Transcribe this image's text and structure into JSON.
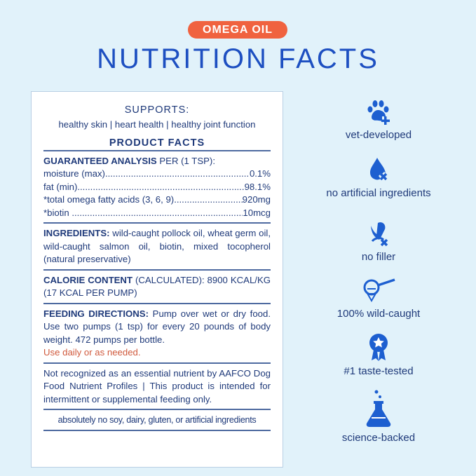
{
  "badge": "OMEGA OIL",
  "title": "NUTRITION FACTS",
  "panel": {
    "supports_title": "SUPPORTS:",
    "supports": "healthy skin | heart health | healthy joint function",
    "product_facts": "PRODUCT FACTS",
    "ga_title": "GUARANTEED ANALYSIS",
    "ga_per": " PER (1 TSP):",
    "analysis": [
      {
        "label": "moisture (max)",
        "value": "0.1%"
      },
      {
        "label": "fat (min)",
        "value": "98.1%"
      },
      {
        "label": "*total omega fatty acids (3, 6, 9)",
        "value": "920mg"
      },
      {
        "label": "*biotin ",
        "value": "10mcg"
      }
    ],
    "ingredients_title": "INGREDIENTS:",
    "ingredients": " wild-caught pollock oil, wheat germ oil, wild-caught salmon oil, biotin, mixed tocopherol (natural preservative)",
    "calorie_title": "CALORIE CONTENT",
    "calorie": " (CALCULATED): 8900 KCAL/KG (17 KCAL PER PUMP)",
    "feeding_title": "FEEDING DIRECTIONS:",
    "feeding": " Pump over wet or dry food. Use two pumps (1 tsp) for every 20 pounds of body weight. 472 pumps per bottle.",
    "feeding_note": "Use daily or as needed.",
    "disclaimer": "Not recognized as an essential nutrient by AAFCO Dog Food Nutrient Profiles | This product is intended for intermittent or supplemental feeding only.",
    "footer": "absolutely no soy, dairy, gluten, or artificial ingredients"
  },
  "features": [
    {
      "icon": "paw-plus-icon",
      "label": "vet-developed"
    },
    {
      "icon": "drop-x-icon",
      "label": "no artificial ingredients"
    },
    {
      "icon": "corn-x-icon",
      "label": "no filler"
    },
    {
      "icon": "fishing-net-icon",
      "label": "100% wild-caught"
    },
    {
      "icon": "award-ribbon-icon",
      "label": "#1 taste-tested"
    },
    {
      "icon": "flask-icon",
      "label": "science-backed"
    }
  ],
  "colors": {
    "accent": "#1d4fc1",
    "badge": "#f0623f",
    "text": "#1f3a7a",
    "background": "#e1f2fa"
  }
}
